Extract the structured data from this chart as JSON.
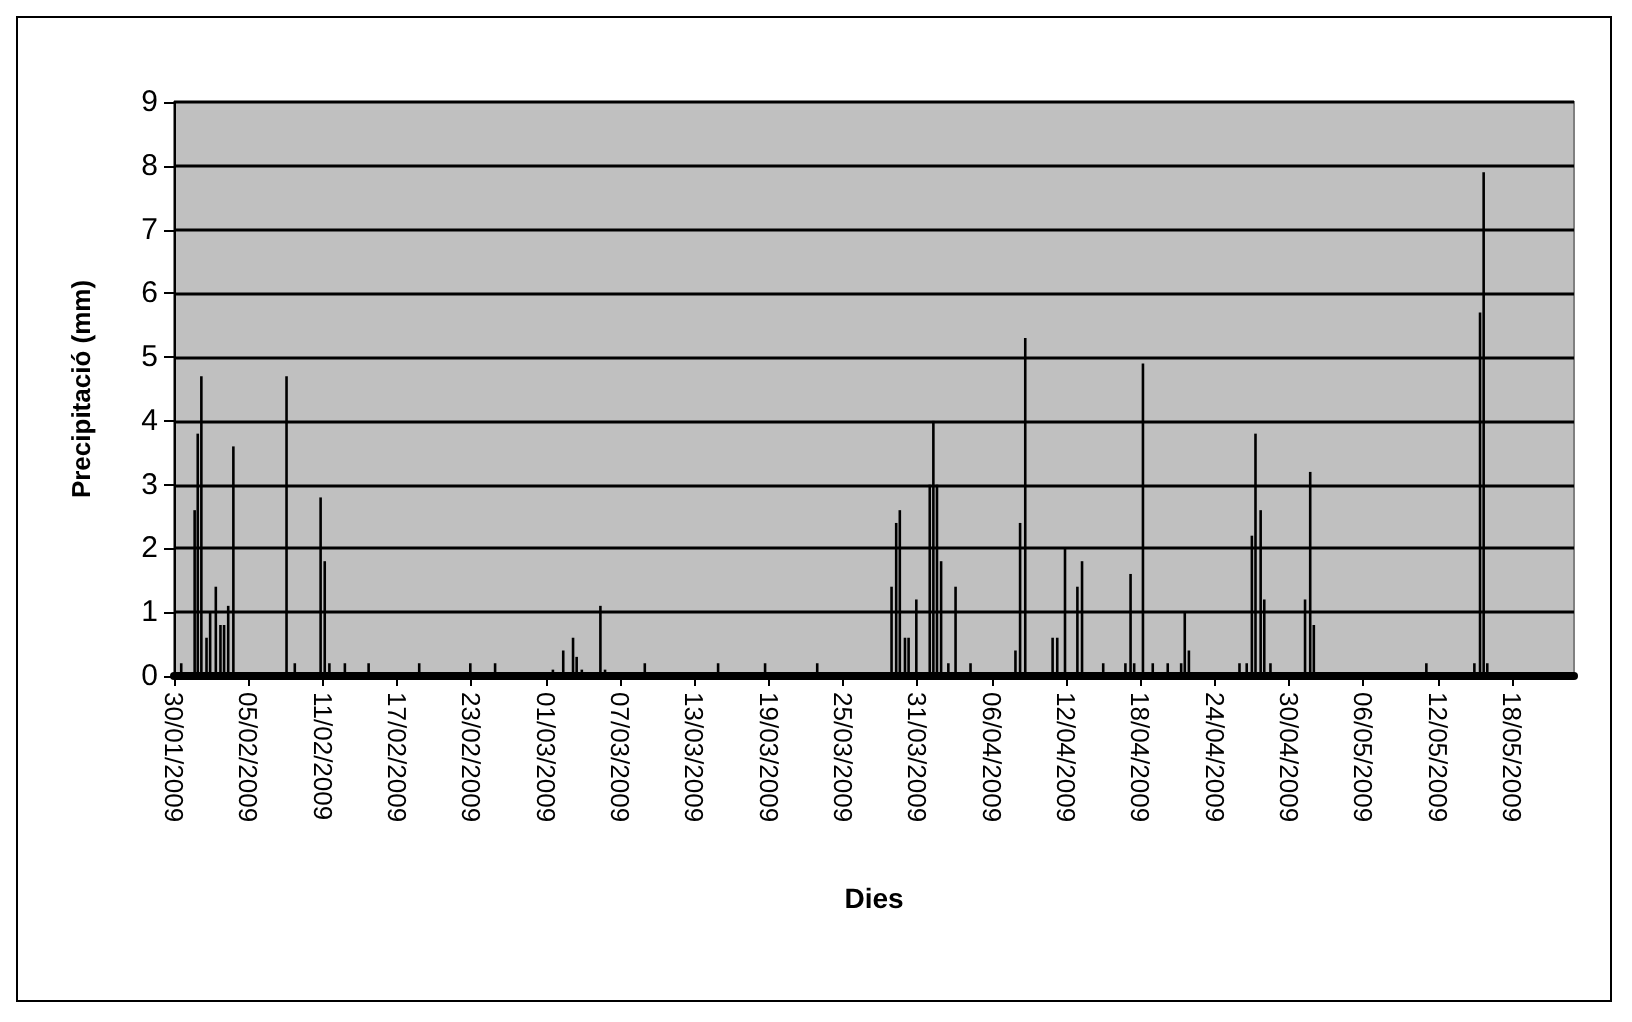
{
  "chart_data": {
    "type": "bar",
    "xlabel": "Dies",
    "ylabel": "Precipitació (mm)",
    "color": "#000000",
    "grid": "y",
    "x": [
      "2009-01-30T14:00",
      "2009-01-31T16:00",
      "2009-01-31T22:00",
      "2009-02-01T05:00",
      "2009-02-01T15:00",
      "2009-02-01T22:00",
      "2009-02-02T09:00",
      "2009-02-02T18:00",
      "2009-02-03T01:00",
      "2009-02-03T09:00",
      "2009-02-03T19:00",
      "2009-02-08T02:00",
      "2009-02-08T18:00",
      "2009-02-10T20:00",
      "2009-02-11T04:00",
      "2009-02-11T13:00",
      "2009-02-12T19:00",
      "2009-02-14T17:00",
      "2009-02-18T19:00",
      "2009-02-22T22:00",
      "2009-02-24T22:00",
      "2009-03-01T14:00",
      "2009-03-02T10:00",
      "2009-03-03T05:00",
      "2009-03-03T12:00",
      "2009-03-03T22:00",
      "2009-03-05T10:00",
      "2009-03-05T19:00",
      "2009-03-09T00:00",
      "2009-03-14T22:00",
      "2009-03-18T17:00",
      "2009-03-22T22:00",
      "2009-03-28T22:00",
      "2009-03-29T07:00",
      "2009-03-29T14:00",
      "2009-03-30T00:00",
      "2009-03-30T07:00",
      "2009-03-30T22:00",
      "2009-04-01T00:00",
      "2009-04-01T07:00",
      "2009-04-01T14:00",
      "2009-04-01T22:00",
      "2009-04-02T12:00",
      "2009-04-03T02:00",
      "2009-04-04T07:00",
      "2009-04-07T22:00",
      "2009-04-08T07:00",
      "2009-04-08T17:00",
      "2009-04-10T22:00",
      "2009-04-11T07:00",
      "2009-04-11T22:00",
      "2009-04-12T22:00",
      "2009-04-13T07:00",
      "2009-04-15T00:00",
      "2009-04-16T19:00",
      "2009-04-17T05:00",
      "2009-04-17T12:00",
      "2009-04-18T05:00",
      "2009-04-19T00:00",
      "2009-04-20T05:00",
      "2009-04-21T07:00",
      "2009-04-21T14:00",
      "2009-04-21T22:00",
      "2009-04-26T00:00",
      "2009-04-26T14:00",
      "2009-04-27T00:00",
      "2009-04-27T07:00",
      "2009-04-27T17:00",
      "2009-04-28T00:00",
      "2009-04-28T12:00",
      "2009-05-01T07:00",
      "2009-05-01T17:00",
      "2009-05-02T00:00",
      "2009-05-11T02:00",
      "2009-05-14T23:00",
      "2009-05-15T10:00",
      "2009-05-15T17:00",
      "2009-05-16T00:00"
    ],
    "values": [
      0.2,
      2.6,
      3.8,
      4.7,
      0.6,
      1.0,
      1.4,
      0.8,
      0.8,
      1.1,
      3.6,
      4.7,
      0.2,
      2.8,
      1.8,
      0.2,
      0.2,
      0.2,
      0.2,
      0.2,
      0.2,
      0.1,
      0.4,
      0.6,
      0.3,
      0.1,
      1.1,
      0.1,
      0.2,
      0.2,
      0.2,
      0.2,
      1.4,
      2.4,
      2.6,
      0.6,
      0.6,
      1.2,
      3.0,
      4.0,
      3.0,
      1.8,
      0.2,
      1.4,
      0.2,
      0.4,
      2.4,
      5.3,
      0.6,
      0.6,
      2.0,
      1.4,
      1.8,
      0.2,
      0.2,
      1.6,
      0.2,
      4.9,
      0.2,
      0.2,
      0.2,
      1.0,
      0.4,
      0.2,
      0.2,
      2.2,
      3.8,
      2.6,
      1.2,
      0.2,
      1.2,
      3.2,
      0.8,
      0.2,
      0.2,
      5.7,
      7.9,
      0.2
    ],
    "xlim": [
      "2009-01-30",
      "2009-05-23"
    ],
    "xticks": [
      {
        "value": "2009-01-30",
        "label": "30/01/2009"
      },
      {
        "value": "2009-02-05",
        "label": "05/02/2009"
      },
      {
        "value": "2009-02-11",
        "label": "11/02/2009"
      },
      {
        "value": "2009-02-17",
        "label": "17/02/2009"
      },
      {
        "value": "2009-02-23",
        "label": "23/02/2009"
      },
      {
        "value": "2009-03-01",
        "label": "01/03/2009"
      },
      {
        "value": "2009-03-07",
        "label": "07/03/2009"
      },
      {
        "value": "2009-03-13",
        "label": "13/03/2009"
      },
      {
        "value": "2009-03-19",
        "label": "19/03/2009"
      },
      {
        "value": "2009-03-25",
        "label": "25/03/2009"
      },
      {
        "value": "2009-03-31",
        "label": "31/03/2009"
      },
      {
        "value": "2009-04-06",
        "label": "06/04/2009"
      },
      {
        "value": "2009-04-12",
        "label": "12/04/2009"
      },
      {
        "value": "2009-04-18",
        "label": "18/04/2009"
      },
      {
        "value": "2009-04-24",
        "label": "24/04/2009"
      },
      {
        "value": "2009-04-30",
        "label": "30/04/2009"
      },
      {
        "value": "2009-05-06",
        "label": "06/05/2009"
      },
      {
        "value": "2009-05-12",
        "label": "12/05/2009"
      },
      {
        "value": "2009-05-18",
        "label": "18/05/2009"
      }
    ],
    "ylim": [
      0,
      9
    ],
    "yticks": [
      0,
      1,
      2,
      3,
      4,
      5,
      6,
      7,
      8,
      9
    ]
  }
}
